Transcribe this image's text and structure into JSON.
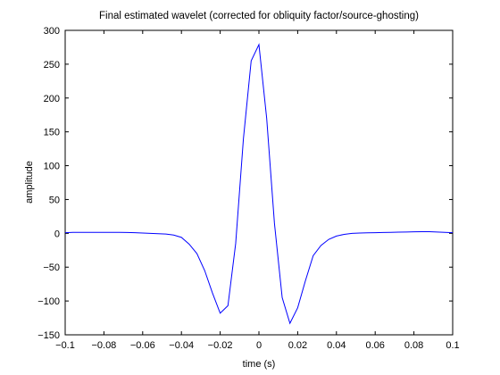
{
  "chart_data": {
    "type": "line",
    "title": "Final estimated wavelet (corrected for obliquity factor/source-ghosting)",
    "xlabel": "time (s)",
    "ylabel": "amplitude",
    "xlim": [
      -0.1,
      0.1
    ],
    "ylim": [
      -150,
      300
    ],
    "xticks": [
      -0.1,
      -0.08,
      -0.06,
      -0.04,
      -0.02,
      0,
      0.02,
      0.04,
      0.06,
      0.08,
      0.1
    ],
    "xtick_labels": [
      "-0.1",
      "-0.08",
      "-0.06",
      "-0.04",
      "-0.02",
      "0",
      "0.02",
      "0.04",
      "0.06",
      "0.08",
      "0.1"
    ],
    "yticks": [
      -150,
      -100,
      -50,
      0,
      50,
      100,
      150,
      200,
      250,
      300
    ],
    "ytick_labels": [
      "-150",
      "-100",
      "-50",
      "0",
      "50",
      "100",
      "150",
      "200",
      "250",
      "300"
    ],
    "grid": false,
    "line_color": "#0000ff",
    "series": [
      {
        "x": [
          -0.1,
          -0.096,
          -0.092,
          -0.088,
          -0.084,
          -0.08,
          -0.076,
          -0.072,
          -0.068,
          -0.064,
          -0.06,
          -0.056,
          -0.052,
          -0.048,
          -0.044,
          -0.04,
          -0.036,
          -0.032,
          -0.028,
          -0.024,
          -0.02,
          -0.016,
          -0.012,
          -0.008,
          -0.004,
          0,
          0.004,
          0.008,
          0.012,
          0.016,
          0.02,
          0.024,
          0.028,
          0.032,
          0.036,
          0.04,
          0.044,
          0.048,
          0.052,
          0.056,
          0.06,
          0.064,
          0.068,
          0.072,
          0.076,
          0.08,
          0.084,
          0.088,
          0.092,
          0.096,
          0.1
        ],
        "y": [
          1,
          1.5,
          1.5,
          1.5,
          1.5,
          1.5,
          1.5,
          1.5,
          1.2,
          1,
          0.5,
          0,
          -0.5,
          -1,
          -2.5,
          -6,
          -16,
          -30,
          -55,
          -88,
          -118,
          -107,
          -15,
          140,
          255,
          279,
          170,
          15,
          -95,
          -133,
          -110,
          -70,
          -33,
          -18,
          -9,
          -4,
          -1.5,
          0,
          0.5,
          0.8,
          1,
          1.2,
          1.5,
          1.8,
          2,
          2.2,
          2.4,
          2.5,
          2,
          1.5,
          1
        ]
      }
    ]
  }
}
